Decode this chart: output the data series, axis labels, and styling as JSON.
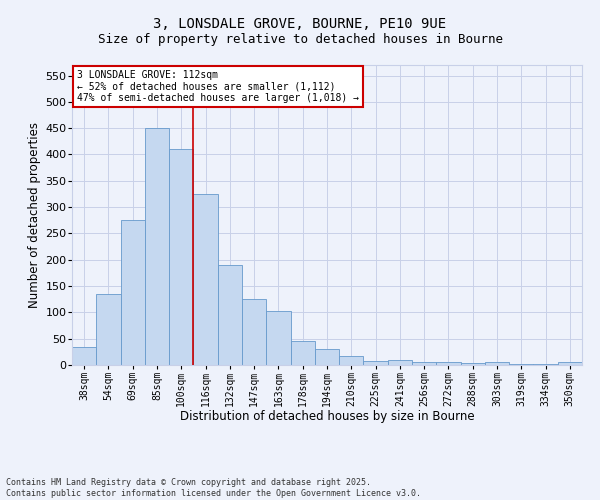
{
  "title_line1": "3, LONSDALE GROVE, BOURNE, PE10 9UE",
  "title_line2": "Size of property relative to detached houses in Bourne",
  "xlabel": "Distribution of detached houses by size in Bourne",
  "ylabel": "Number of detached properties",
  "categories": [
    "38sqm",
    "54sqm",
    "69sqm",
    "85sqm",
    "100sqm",
    "116sqm",
    "132sqm",
    "147sqm",
    "163sqm",
    "178sqm",
    "194sqm",
    "210sqm",
    "225sqm",
    "241sqm",
    "256sqm",
    "272sqm",
    "288sqm",
    "303sqm",
    "319sqm",
    "334sqm",
    "350sqm"
  ],
  "values": [
    35,
    135,
    275,
    450,
    410,
    325,
    190,
    125,
    103,
    45,
    30,
    18,
    7,
    10,
    6,
    5,
    4,
    6,
    2,
    2,
    6
  ],
  "bar_color": "#c5d8f0",
  "bar_edge_color": "#6699cc",
  "bg_color": "#eef2fb",
  "grid_color": "#c8d0e8",
  "annotation_text": "3 LONSDALE GROVE: 112sqm\n← 52% of detached houses are smaller (1,112)\n47% of semi-detached houses are larger (1,018) →",
  "annotation_box_color": "#ffffff",
  "annotation_box_edge": "#cc0000",
  "vline_color": "#cc0000",
  "vline_x": 4.5,
  "ylim": [
    0,
    570
  ],
  "yticks": [
    0,
    50,
    100,
    150,
    200,
    250,
    300,
    350,
    400,
    450,
    500,
    550
  ],
  "footnote": "Contains HM Land Registry data © Crown copyright and database right 2025.\nContains public sector information licensed under the Open Government Licence v3.0.",
  "title_fontsize": 10,
  "subtitle_fontsize": 9,
  "tick_fontsize": 7,
  "label_fontsize": 8.5
}
